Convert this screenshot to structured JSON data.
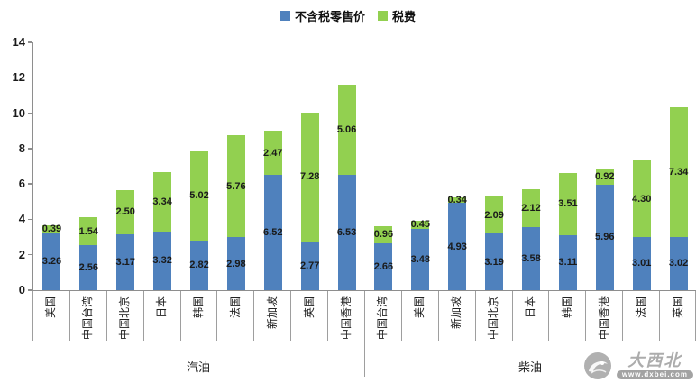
{
  "legend": [
    {
      "label": "不含税零售价",
      "color": "#4F81BD"
    },
    {
      "label": "税费",
      "color": "#92D050"
    }
  ],
  "chart_data": {
    "type": "bar",
    "stacked": true,
    "ylim": [
      0,
      14
    ],
    "yticks": [
      0,
      2,
      4,
      6,
      8,
      10,
      12,
      14
    ],
    "grid": "off",
    "legend_position": "top-center",
    "series_names": [
      "不含税零售价",
      "税费"
    ],
    "groups": [
      {
        "label": "汽油",
        "categories": [
          "美国",
          "中国台湾",
          "中国北京",
          "日本",
          "韩国",
          "法国",
          "新加坡",
          "英国",
          "中国香港"
        ],
        "series": [
          {
            "name": "不含税零售价",
            "color": "#4F81BD",
            "values": [
              3.26,
              2.56,
              3.17,
              3.32,
              2.82,
              2.98,
              6.52,
              2.77,
              6.53
            ]
          },
          {
            "name": "税费",
            "color": "#92D050",
            "values": [
              0.39,
              1.54,
              2.5,
              3.34,
              5.02,
              5.76,
              2.47,
              7.28,
              5.06
            ]
          }
        ]
      },
      {
        "label": "柴油",
        "categories": [
          "中国台湾",
          "美国",
          "新加坡",
          "中国北京",
          "日本",
          "韩国",
          "中国香港",
          "法国",
          "英国"
        ],
        "series": [
          {
            "name": "不含税零售价",
            "color": "#4F81BD",
            "values": [
              2.66,
              3.48,
              4.93,
              3.19,
              3.58,
              3.11,
              5.96,
              3.01,
              3.02
            ]
          },
          {
            "name": "税费",
            "color": "#92D050",
            "values": [
              0.96,
              0.45,
              0.34,
              2.09,
              2.12,
              3.51,
              0.92,
              4.3,
              7.34
            ]
          }
        ]
      }
    ]
  },
  "watermark": {
    "brand": "大西北",
    "url_text": "www.dxbei.com"
  }
}
